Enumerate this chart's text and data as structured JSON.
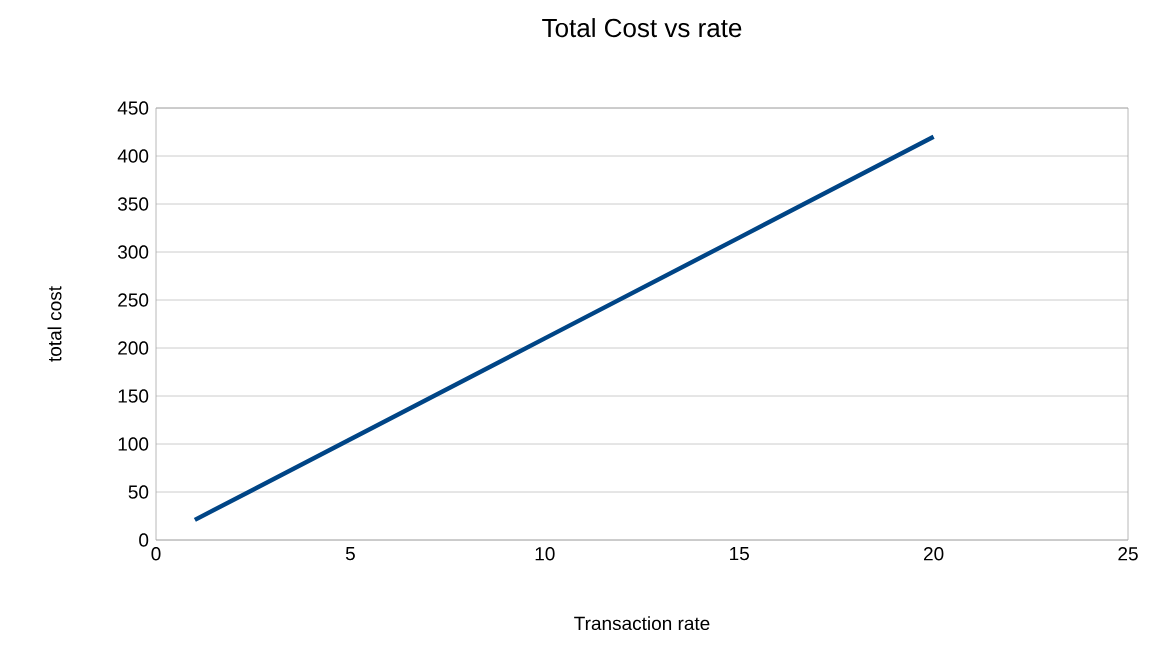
{
  "chart_data": {
    "type": "line",
    "title": "Total Cost vs rate",
    "xlabel": "Transaction rate",
    "ylabel": "total cost",
    "x": [
      1,
      5,
      10,
      15,
      20
    ],
    "series": [
      {
        "color": "#004586",
        "values": [
          21,
          105,
          210,
          315,
          420
        ]
      }
    ],
    "xlim": [
      0,
      25
    ],
    "xticks": [
      0,
      5,
      10,
      15,
      20,
      25
    ],
    "ylim": [
      0,
      450
    ],
    "yticks": [
      0,
      50,
      100,
      150,
      200,
      250,
      300,
      350,
      400,
      450
    ],
    "grid": "y",
    "marker": "none",
    "line_style": "solid"
  }
}
